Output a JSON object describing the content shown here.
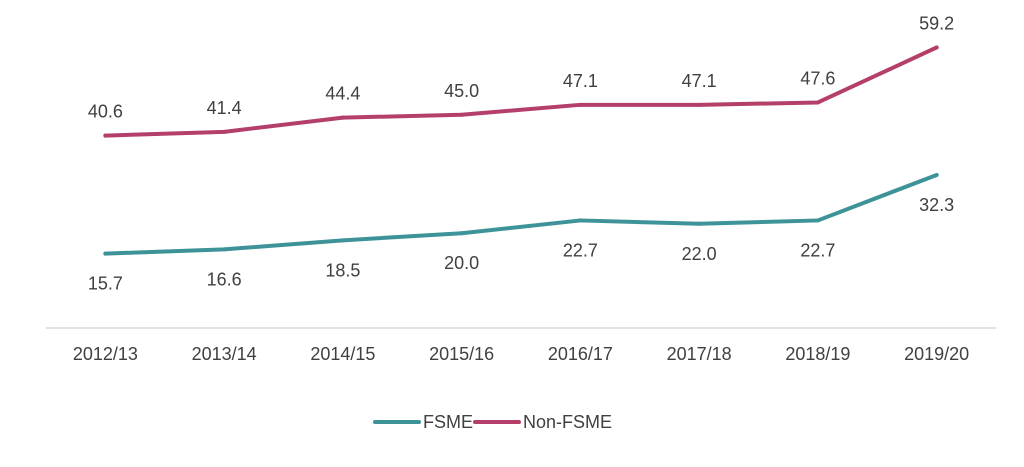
{
  "chart_data": {
    "type": "line",
    "title": "",
    "xlabel": "",
    "ylabel": "",
    "ylim": [
      0,
      65
    ],
    "grid": false,
    "legend_position": "bottom",
    "categories": [
      "2012/13",
      "2013/14",
      "2014/15",
      "2015/16",
      "2016/17",
      "2017/18",
      "2018/19",
      "2019/20"
    ],
    "series": [
      {
        "name": "FSME",
        "color": "#3E9399",
        "values": [
          15.7,
          16.6,
          18.5,
          20.0,
          22.7,
          22.0,
          22.7,
          32.3
        ],
        "labels": [
          "15.7",
          "16.6",
          "18.5",
          "20.0",
          "22.7",
          "22.0",
          "22.7",
          "32.3"
        ]
      },
      {
        "name": "Non-FSME",
        "color": "#B33F6A",
        "values": [
          40.6,
          41.4,
          44.4,
          45.0,
          47.1,
          47.1,
          47.6,
          59.2
        ],
        "labels": [
          "40.6",
          "41.4",
          "44.4",
          "45.0",
          "47.1",
          "47.1",
          "47.6",
          "59.2"
        ]
      }
    ]
  }
}
